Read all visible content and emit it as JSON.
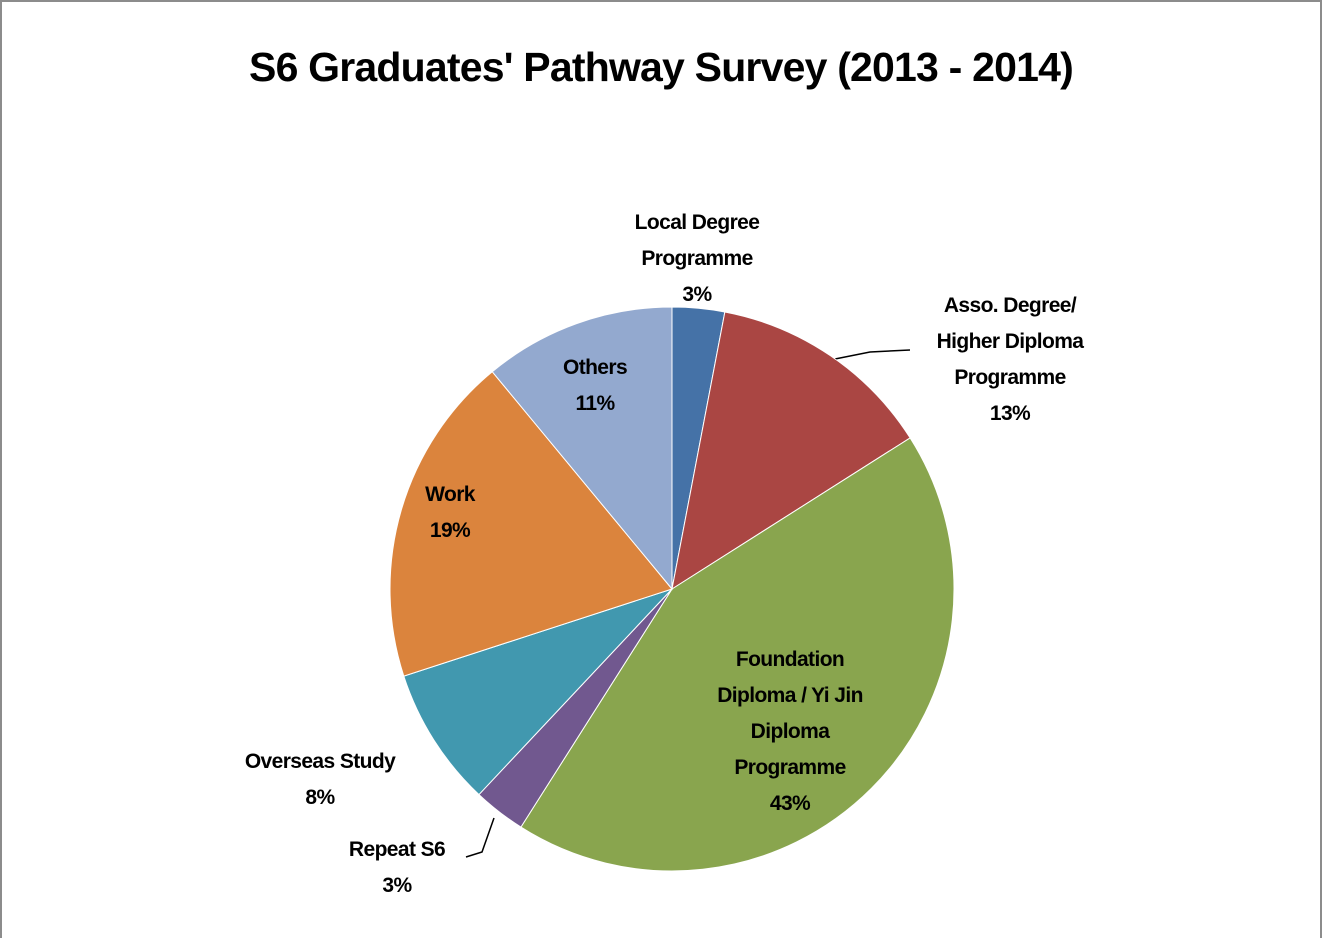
{
  "chart_data": {
    "type": "pie",
    "title": "S6 Graduates' Pathway Survey (2013 - 2014)",
    "categories": [
      "Local Degree Programme",
      "Asso. Degree/ Higher Diploma Programme",
      "Foundation Diploma / Yi Jin Diploma Programme",
      "Repeat S6",
      "Overseas Study",
      "Work",
      "Others"
    ],
    "values": [
      3,
      13,
      43,
      3,
      8,
      19,
      11
    ],
    "value_labels": [
      "3%",
      "13%",
      "43%",
      "3%",
      "8%",
      "19%",
      "11%"
    ],
    "colors": [
      "#4572a7",
      "#aa4643",
      "#89a54e",
      "#71588f",
      "#4198af",
      "#db843d",
      "#93a9cf"
    ]
  }
}
